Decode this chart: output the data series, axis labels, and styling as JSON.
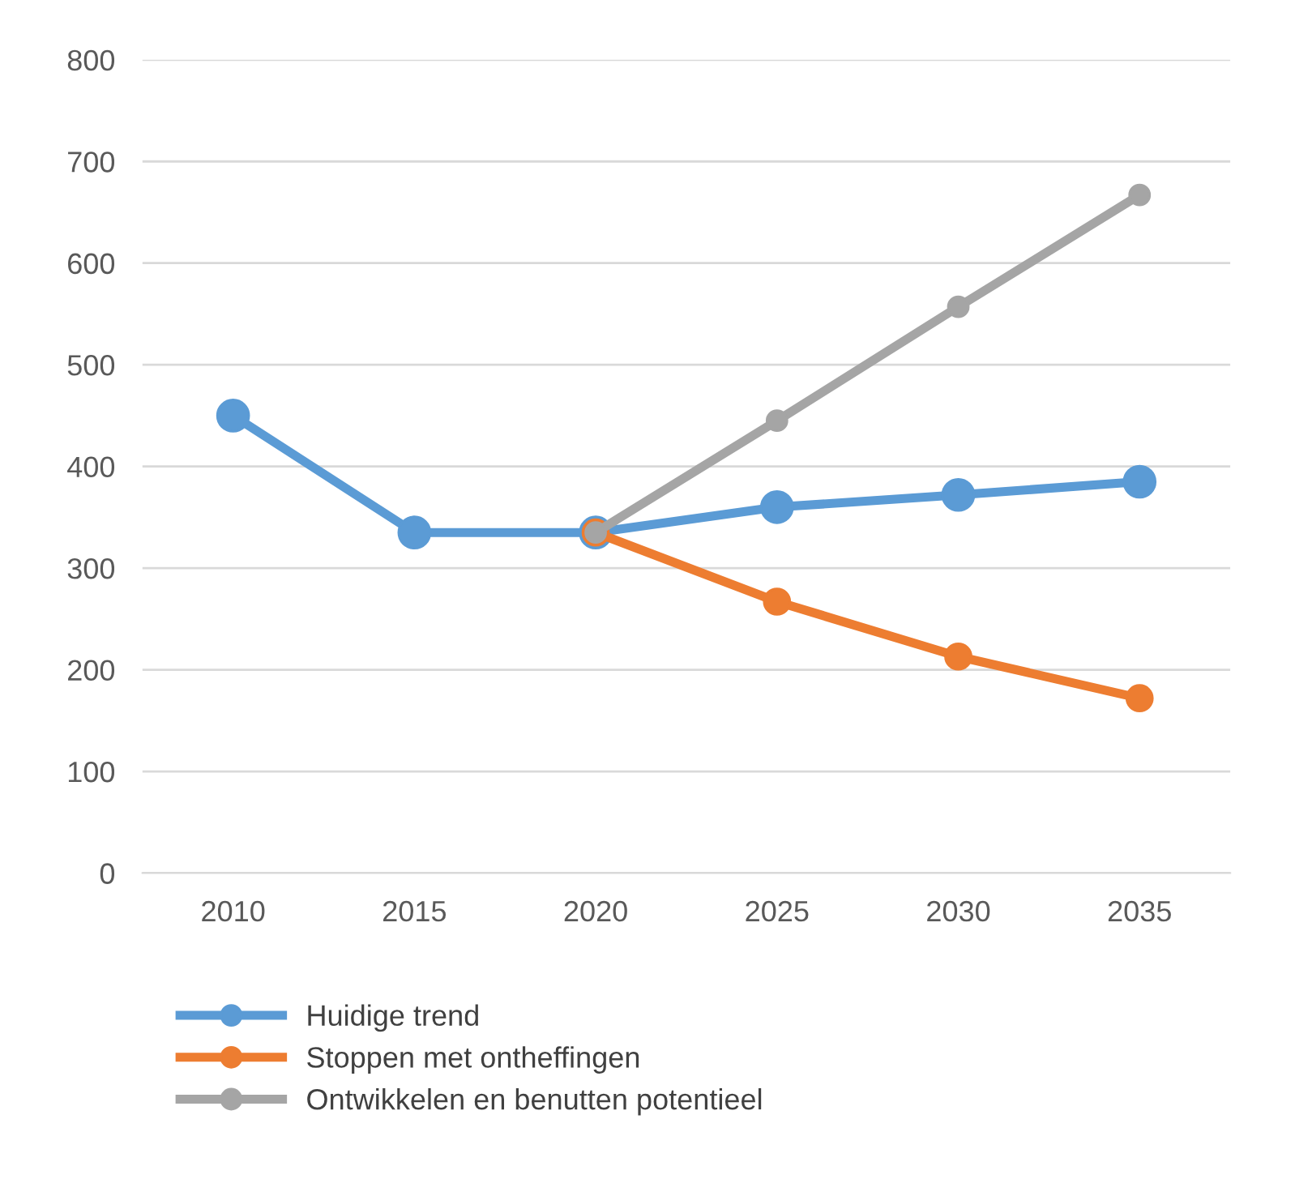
{
  "chart_data": {
    "type": "line",
    "categories": [
      "2010",
      "2015",
      "2020",
      "2025",
      "2030",
      "2035"
    ],
    "series": [
      {
        "name": "Huidige trend",
        "color": "#5b9bd5",
        "values": [
          450,
          335,
          335,
          360,
          372,
          385
        ]
      },
      {
        "name": "Stoppen met ontheffingen",
        "color": "#ed7d31",
        "values": [
          null,
          null,
          335,
          267,
          213,
          172
        ]
      },
      {
        "name": "Ontwikkelen en benutten potentieel",
        "color": "#a5a5a5",
        "values": [
          null,
          null,
          335,
          445,
          557,
          667
        ]
      }
    ],
    "ylim": [
      0,
      800
    ],
    "yticks": [
      0,
      100,
      200,
      300,
      400,
      500,
      600,
      700,
      800
    ],
    "grid": "y",
    "legend": "bottom",
    "marker": "circle",
    "line_style": "solid"
  }
}
